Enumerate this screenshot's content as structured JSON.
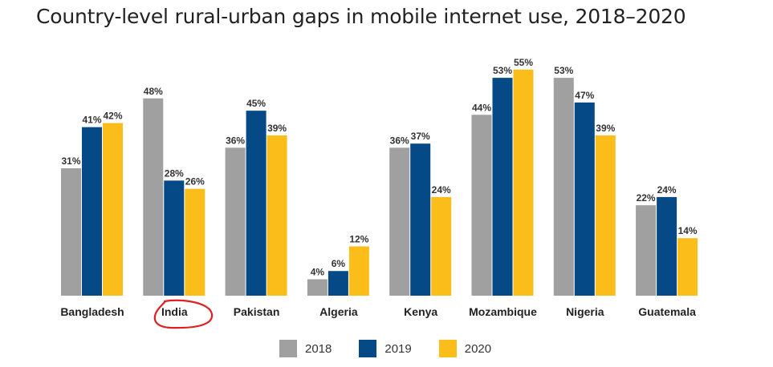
{
  "title": "Country-level rural-urban gaps in mobile internet use, 2018–2020",
  "colors": {
    "2018": "#a0a0a0",
    "2019": "#054a86",
    "2020": "#fbbd1a",
    "annotation": "#e02020"
  },
  "chart_data": {
    "type": "bar",
    "categories": [
      "Bangladesh",
      "India",
      "Pakistan",
      "Algeria",
      "Kenya",
      "Mozambique",
      "Nigeria",
      "Guatemala"
    ],
    "series": [
      {
        "name": "2018",
        "values": [
          31,
          48,
          36,
          4,
          36,
          44,
          53,
          22
        ],
        "labels": [
          "31%",
          "48%",
          "36%",
          "4%",
          "36%",
          "44%",
          "53%",
          "22%"
        ]
      },
      {
        "name": "2019",
        "values": [
          41,
          28,
          45,
          6,
          37,
          53,
          47,
          24
        ],
        "labels": [
          "41%",
          "28%",
          "45%",
          "6%",
          "37%",
          "53%",
          "47%",
          "24%"
        ]
      },
      {
        "name": "2020",
        "values": [
          42,
          26,
          39,
          12,
          24,
          55,
          39,
          14
        ],
        "labels": [
          "42%",
          "26%",
          "39%",
          "12%",
          "24%",
          "55%",
          "39%",
          "14%"
        ]
      }
    ],
    "ylim": [
      0,
      60
    ],
    "legend_position": "bottom-center",
    "grid": false,
    "annotation": "hand-drawn red circle around India label"
  }
}
